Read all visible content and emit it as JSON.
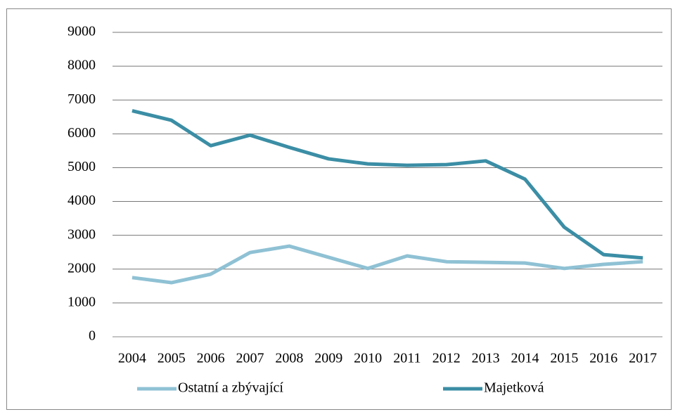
{
  "chart_data": {
    "type": "line",
    "categories": [
      "2004",
      "2005",
      "2006",
      "2007",
      "2008",
      "2009",
      "2010",
      "2011",
      "2012",
      "2013",
      "2014",
      "2015",
      "2016",
      "2017"
    ],
    "series": [
      {
        "name": "Ostatní a zbývající",
        "color": "#8fc1d4",
        "values": [
          1750,
          1600,
          1850,
          2490,
          2680,
          2350,
          2020,
          2390,
          2220,
          2200,
          2180,
          2020,
          2140,
          2220
        ]
      },
      {
        "name": "Majetková",
        "color": "#3b8ea5",
        "values": [
          6680,
          6400,
          5650,
          5960,
          5600,
          5260,
          5110,
          5070,
          5090,
          5200,
          4660,
          3240,
          2430,
          2330
        ]
      }
    ],
    "ylim": [
      0,
      9000
    ],
    "yticks": [
      0,
      1000,
      2000,
      3000,
      4000,
      5000,
      6000,
      7000,
      8000,
      9000
    ],
    "grid": true,
    "legend": "bottom"
  }
}
